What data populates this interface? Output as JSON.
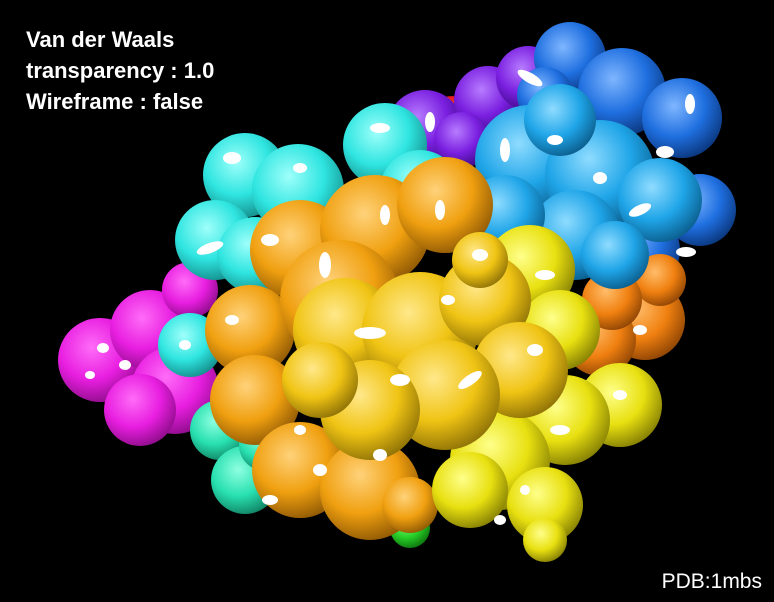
{
  "overlay": {
    "representation_label": "Van der Waals",
    "transparency_text": "transparency : 1.0",
    "wireframe_text": "Wireframe : false"
  },
  "footer": {
    "pdb_label": "PDB:1mbs"
  },
  "render": {
    "background": "#000000",
    "subject": "protein-surface",
    "colors": {
      "magenta": "#e81ee0",
      "cyan": "#2fe5e0",
      "teal": "#28e0b0",
      "violet": "#7a1fe0",
      "blue": "#1f6fe0",
      "sky": "#1fa5e8",
      "orange": "#f08010",
      "amber": "#f0a010",
      "gold": "#f0c414",
      "yellow": "#e8e010",
      "green": "#28d028",
      "red": "#e01010",
      "highlight": "#ffffff"
    }
  }
}
